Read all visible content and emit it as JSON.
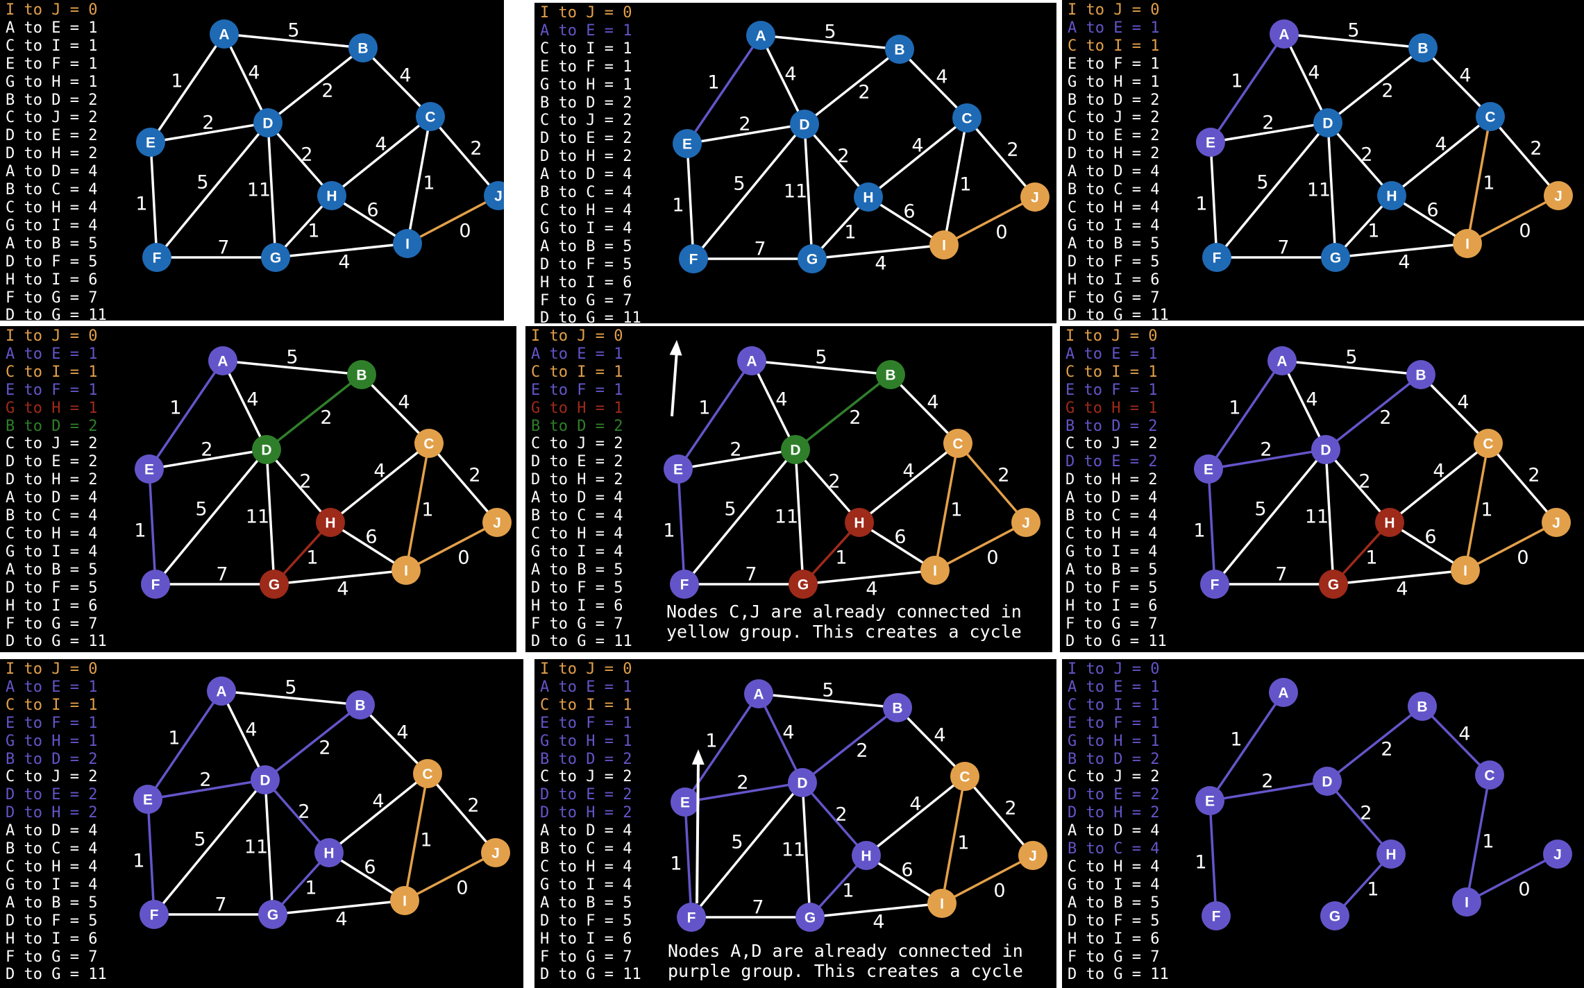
{
  "colors": {
    "background": "#000000",
    "text_default": "#ffffff",
    "blue": "#1f6ab5",
    "orange": "#e3a04a",
    "purple": "#6355c9",
    "green": "#2f7f2a",
    "red": "#9e2a1a",
    "white": "#ffffff"
  },
  "nodes": [
    "A",
    "B",
    "C",
    "D",
    "E",
    "F",
    "G",
    "H",
    "I",
    "J"
  ],
  "edges": [
    {
      "label": "I to J = 0",
      "from": "I",
      "to": "J",
      "weight": "0"
    },
    {
      "label": "A to E = 1",
      "from": "A",
      "to": "E",
      "weight": "1"
    },
    {
      "label": "C to I = 1",
      "from": "C",
      "to": "I",
      "weight": "1"
    },
    {
      "label": "E to F = 1",
      "from": "E",
      "to": "F",
      "weight": "1"
    },
    {
      "label": "G to H = 1",
      "from": "G",
      "to": "H",
      "weight": "1"
    },
    {
      "label": "B to D = 2",
      "from": "B",
      "to": "D",
      "weight": "2"
    },
    {
      "label": "C to J = 2",
      "from": "C",
      "to": "J",
      "weight": "2"
    },
    {
      "label": "D to E = 2",
      "from": "D",
      "to": "E",
      "weight": "2"
    },
    {
      "label": "D to H = 2",
      "from": "D",
      "to": "H",
      "weight": "2"
    },
    {
      "label": "A to D = 4",
      "from": "A",
      "to": "D",
      "weight": "4"
    },
    {
      "label": "B to C = 4",
      "from": "B",
      "to": "C",
      "weight": "4"
    },
    {
      "label": "C to H = 4",
      "from": "C",
      "to": "H",
      "weight": "4"
    },
    {
      "label": "G to I = 4",
      "from": "G",
      "to": "I",
      "weight": "4"
    },
    {
      "label": "A to B = 5",
      "from": "A",
      "to": "B",
      "weight": "5"
    },
    {
      "label": "D to F = 5",
      "from": "D",
      "to": "F",
      "weight": "5"
    },
    {
      "label": "H to I = 6",
      "from": "H",
      "to": "I",
      "weight": "6"
    },
    {
      "label": "F to G = 7",
      "from": "F",
      "to": "G",
      "weight": "7"
    },
    {
      "label": "D to G = 11",
      "from": "D",
      "to": "G",
      "weight": "11"
    }
  ],
  "panels": [
    {
      "nodes": {
        "A": "blue",
        "B": "blue",
        "C": "blue",
        "D": "blue",
        "E": "blue",
        "F": "blue",
        "G": "blue",
        "H": "blue",
        "I": "blue",
        "J": "blue"
      },
      "edges": {
        "I-J": "orange"
      },
      "list": [
        "orange",
        "white",
        "white",
        "white",
        "white",
        "white",
        "white",
        "white",
        "white",
        "white",
        "white",
        "white",
        "white",
        "white",
        "white",
        "white",
        "white",
        "white"
      ],
      "note": ""
    },
    {
      "nodes": {
        "A": "blue",
        "B": "blue",
        "C": "blue",
        "D": "blue",
        "E": "blue",
        "F": "blue",
        "G": "blue",
        "H": "blue",
        "I": "orange",
        "J": "orange"
      },
      "edges": {
        "I-J": "orange",
        "A-E": "purple"
      },
      "list": [
        "orange",
        "purple",
        "white",
        "white",
        "white",
        "white",
        "white",
        "white",
        "white",
        "white",
        "white",
        "white",
        "white",
        "white",
        "white",
        "white",
        "white",
        "white"
      ],
      "note": ""
    },
    {
      "nodes": {
        "A": "purple",
        "B": "blue",
        "C": "blue",
        "D": "blue",
        "E": "purple",
        "F": "blue",
        "G": "blue",
        "H": "blue",
        "I": "orange",
        "J": "orange"
      },
      "edges": {
        "I-J": "orange",
        "A-E": "purple",
        "C-I": "orange"
      },
      "list": [
        "orange",
        "purple",
        "orange",
        "white",
        "white",
        "white",
        "white",
        "white",
        "white",
        "white",
        "white",
        "white",
        "white",
        "white",
        "white",
        "white",
        "white",
        "white"
      ],
      "note": ""
    },
    {
      "nodes": {
        "A": "purple",
        "B": "green",
        "C": "orange",
        "D": "green",
        "E": "purple",
        "F": "purple",
        "G": "red",
        "H": "red",
        "I": "orange",
        "J": "orange"
      },
      "edges": {
        "I-J": "orange",
        "A-E": "purple",
        "C-I": "orange",
        "E-F": "purple",
        "G-H": "red",
        "B-D": "green"
      },
      "list": [
        "orange",
        "purple",
        "orange",
        "purple",
        "red",
        "green",
        "white",
        "white",
        "white",
        "white",
        "white",
        "white",
        "white",
        "white",
        "white",
        "white",
        "white",
        "white"
      ],
      "note": ""
    },
    {
      "nodes": {
        "A": "purple",
        "B": "green",
        "C": "orange",
        "D": "green",
        "E": "purple",
        "F": "purple",
        "G": "red",
        "H": "red",
        "I": "orange",
        "J": "orange"
      },
      "edges": {
        "I-J": "orange",
        "A-E": "purple",
        "C-I": "orange",
        "E-F": "purple",
        "G-H": "red",
        "B-D": "green",
        "C-J": "orange"
      },
      "list": [
        "orange",
        "purple",
        "orange",
        "purple",
        "red",
        "green",
        "white",
        "white",
        "white",
        "white",
        "white",
        "white",
        "white",
        "white",
        "white",
        "white",
        "white",
        "white"
      ],
      "note": "Nodes C,J are already connected in\nyellow group. This creates a cycle"
    },
    {
      "nodes": {
        "A": "purple",
        "B": "purple",
        "C": "orange",
        "D": "purple",
        "E": "purple",
        "F": "purple",
        "G": "red",
        "H": "red",
        "I": "orange",
        "J": "orange"
      },
      "edges": {
        "I-J": "orange",
        "A-E": "purple",
        "C-I": "orange",
        "E-F": "purple",
        "G-H": "red",
        "B-D": "purple",
        "D-E": "purple"
      },
      "list": [
        "orange",
        "purple",
        "orange",
        "purple",
        "red",
        "purple",
        "white",
        "purple",
        "white",
        "white",
        "white",
        "white",
        "white",
        "white",
        "white",
        "white",
        "white",
        "white"
      ],
      "note": ""
    },
    {
      "nodes": {
        "A": "purple",
        "B": "purple",
        "C": "orange",
        "D": "purple",
        "E": "purple",
        "F": "purple",
        "G": "purple",
        "H": "purple",
        "I": "orange",
        "J": "orange"
      },
      "edges": {
        "I-J": "orange",
        "A-E": "purple",
        "C-I": "orange",
        "E-F": "purple",
        "G-H": "purple",
        "B-D": "purple",
        "D-E": "purple",
        "D-H": "purple"
      },
      "list": [
        "orange",
        "purple",
        "orange",
        "purple",
        "purple",
        "purple",
        "white",
        "purple",
        "purple",
        "white",
        "white",
        "white",
        "white",
        "white",
        "white",
        "white",
        "white",
        "white"
      ],
      "note": ""
    },
    {
      "nodes": {
        "A": "purple",
        "B": "purple",
        "C": "orange",
        "D": "purple",
        "E": "purple",
        "F": "purple",
        "G": "purple",
        "H": "purple",
        "I": "orange",
        "J": "orange"
      },
      "edges": {
        "I-J": "orange",
        "A-E": "purple",
        "C-I": "orange",
        "E-F": "purple",
        "G-H": "purple",
        "B-D": "purple",
        "D-E": "purple",
        "D-H": "purple",
        "A-D": "purple"
      },
      "list": [
        "orange",
        "purple",
        "orange",
        "purple",
        "purple",
        "purple",
        "white",
        "purple",
        "purple",
        "white",
        "white",
        "white",
        "white",
        "white",
        "white",
        "white",
        "white",
        "white"
      ],
      "note": "Nodes A,D are already connected in\npurple group. This creates a cycle"
    },
    {
      "nodes": {
        "A": "purple",
        "B": "purple",
        "C": "purple",
        "D": "purple",
        "E": "purple",
        "F": "purple",
        "G": "purple",
        "H": "purple",
        "I": "purple",
        "J": "purple"
      },
      "edges": {
        "I-J": "purple",
        "A-E": "purple",
        "C-I": "purple",
        "E-F": "purple",
        "G-H": "purple",
        "B-D": "purple",
        "D-E": "purple",
        "D-H": "purple",
        "B-C": "purple"
      },
      "list": [
        "purple",
        "purple",
        "purple",
        "purple",
        "purple",
        "purple",
        "white",
        "purple",
        "purple",
        "white",
        "purple",
        "white",
        "white",
        "white",
        "white",
        "white",
        "white",
        "white"
      ],
      "mst_only": true,
      "note": ""
    }
  ]
}
